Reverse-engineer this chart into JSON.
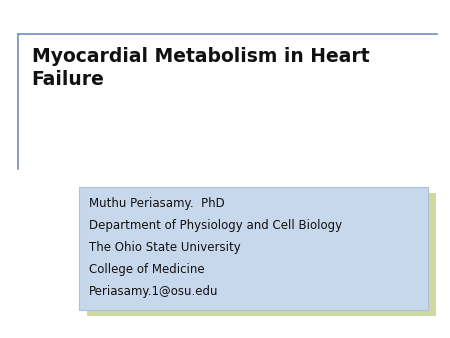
{
  "title_line1": "Myocardial Metabolism in Heart",
  "title_line2": "Failure",
  "title_fontsize": 13.5,
  "title_fontweight": "bold",
  "info_lines": [
    "Muthu Periasamy.  PhD",
    "Department of Physiology and Cell Biology",
    "The Ohio State University",
    "College of Medicine",
    "Periasamy.1@osu.edu"
  ],
  "info_fontsize": 8.5,
  "background_color": "#ffffff",
  "shadow_box_color": "#ccd9a0",
  "inner_box_color": "#c8d8ec",
  "inner_box_edge_color": "#aec0d8",
  "border_color": "#7090bb",
  "text_color": "#111111"
}
